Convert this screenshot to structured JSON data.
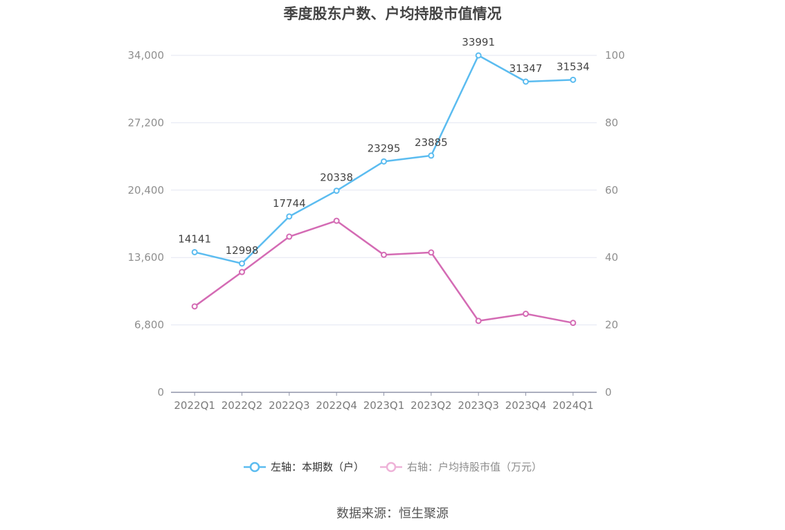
{
  "chart_data": {
    "type": "line",
    "title": "季度股东户数、户均持股市值情况",
    "categories": [
      "2022Q1",
      "2022Q2",
      "2022Q3",
      "2022Q4",
      "2023Q1",
      "2023Q2",
      "2023Q3",
      "2023Q4",
      "2024Q1"
    ],
    "series": [
      {
        "name": "左轴：本期数（户）",
        "axis": "left",
        "color": "#5bbcf0",
        "values": [
          14141,
          12998,
          17744,
          20338,
          23295,
          23885,
          33991,
          31347,
          31534
        ],
        "labels": [
          "14141",
          "12998",
          "17744",
          "20338",
          "23295",
          "23885",
          "33991",
          "31347",
          "31534"
        ]
      },
      {
        "name": "右轴：户均持股市值（万元）",
        "axis": "right",
        "color": "#d46bb4",
        "values": [
          25.5,
          35.7,
          46.2,
          50.9,
          40.8,
          41.5,
          21.2,
          23.3,
          20.6
        ]
      }
    ],
    "left_axis": {
      "ylim": [
        0,
        34000
      ],
      "ticks": [
        "0",
        "6,800",
        "13,600",
        "20,400",
        "27,200",
        "34,000"
      ]
    },
    "right_axis": {
      "ylim": [
        0,
        100
      ],
      "ticks": [
        "0",
        "20",
        "40",
        "60",
        "80",
        "100"
      ]
    },
    "grid": true,
    "legend": "bottom"
  },
  "source": "数据来源：恒生聚源"
}
